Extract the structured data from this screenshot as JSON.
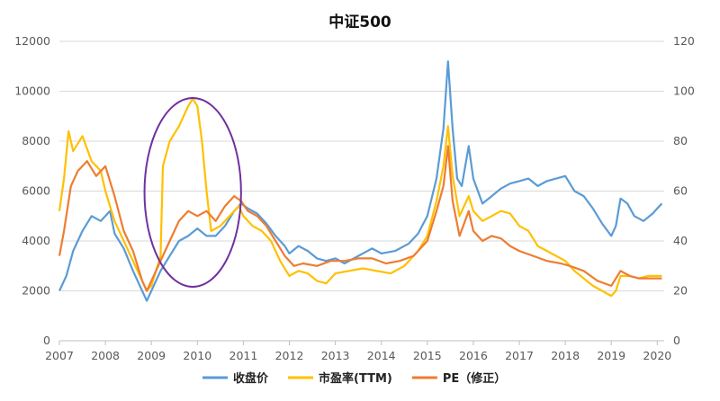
{
  "chart_data": {
    "type": "line",
    "title": "中证500",
    "x_ticks": [
      "2007",
      "2008",
      "2009",
      "2010",
      "2011",
      "2012",
      "2013",
      "2014",
      "2015",
      "2016",
      "2017",
      "2018",
      "2019",
      "2020"
    ],
    "y_left": {
      "min": 0,
      "max": 12000,
      "ticks": [
        0,
        2000,
        4000,
        6000,
        8000,
        10000,
        12000
      ]
    },
    "y_right": {
      "min": 0,
      "max": 120,
      "ticks": [
        0,
        20,
        40,
        60,
        80,
        100,
        120
      ]
    },
    "grid": true,
    "legend_position": "bottom",
    "series": [
      {
        "name": "收盘价",
        "axis": "left",
        "color": "#5b9bd5",
        "points": [
          [
            2007.0,
            2000
          ],
          [
            2007.15,
            2600
          ],
          [
            2007.3,
            3600
          ],
          [
            2007.5,
            4400
          ],
          [
            2007.7,
            5000
          ],
          [
            2007.9,
            4800
          ],
          [
            2008.0,
            5000
          ],
          [
            2008.1,
            5200
          ],
          [
            2008.2,
            4300
          ],
          [
            2008.4,
            3700
          ],
          [
            2008.6,
            2800
          ],
          [
            2008.8,
            2000
          ],
          [
            2008.9,
            1600
          ],
          [
            2009.0,
            2000
          ],
          [
            2009.2,
            2800
          ],
          [
            2009.4,
            3400
          ],
          [
            2009.6,
            4000
          ],
          [
            2009.8,
            4200
          ],
          [
            2010.0,
            4500
          ],
          [
            2010.2,
            4200
          ],
          [
            2010.4,
            4200
          ],
          [
            2010.6,
            4600
          ],
          [
            2010.8,
            5200
          ],
          [
            2010.95,
            5500
          ],
          [
            2011.1,
            5300
          ],
          [
            2011.3,
            5100
          ],
          [
            2011.5,
            4700
          ],
          [
            2011.7,
            4200
          ],
          [
            2011.9,
            3800
          ],
          [
            2012.0,
            3500
          ],
          [
            2012.2,
            3800
          ],
          [
            2012.4,
            3600
          ],
          [
            2012.6,
            3300
          ],
          [
            2012.8,
            3200
          ],
          [
            2013.0,
            3300
          ],
          [
            2013.2,
            3100
          ],
          [
            2013.5,
            3400
          ],
          [
            2013.8,
            3700
          ],
          [
            2014.0,
            3500
          ],
          [
            2014.3,
            3600
          ],
          [
            2014.6,
            3900
          ],
          [
            2014.8,
            4300
          ],
          [
            2015.0,
            5000
          ],
          [
            2015.2,
            6500
          ],
          [
            2015.35,
            8500
          ],
          [
            2015.45,
            11200
          ],
          [
            2015.55,
            8500
          ],
          [
            2015.65,
            6500
          ],
          [
            2015.75,
            6200
          ],
          [
            2015.9,
            7800
          ],
          [
            2016.0,
            6500
          ],
          [
            2016.2,
            5500
          ],
          [
            2016.4,
            5800
          ],
          [
            2016.6,
            6100
          ],
          [
            2016.8,
            6300
          ],
          [
            2017.0,
            6400
          ],
          [
            2017.2,
            6500
          ],
          [
            2017.4,
            6200
          ],
          [
            2017.6,
            6400
          ],
          [
            2017.8,
            6500
          ],
          [
            2018.0,
            6600
          ],
          [
            2018.2,
            6000
          ],
          [
            2018.4,
            5800
          ],
          [
            2018.6,
            5300
          ],
          [
            2018.8,
            4700
          ],
          [
            2019.0,
            4200
          ],
          [
            2019.1,
            4600
          ],
          [
            2019.2,
            5700
          ],
          [
            2019.35,
            5500
          ],
          [
            2019.5,
            5000
          ],
          [
            2019.7,
            4800
          ],
          [
            2019.9,
            5100
          ],
          [
            2020.0,
            5300
          ],
          [
            2020.1,
            5500
          ]
        ]
      },
      {
        "name": "市盈率(TTM)",
        "axis": "right",
        "color": "#ffc000",
        "points": [
          [
            2007.0,
            52
          ],
          [
            2007.1,
            65
          ],
          [
            2007.2,
            84
          ],
          [
            2007.3,
            76
          ],
          [
            2007.5,
            82
          ],
          [
            2007.7,
            72
          ],
          [
            2007.9,
            68
          ],
          [
            2008.0,
            60
          ],
          [
            2008.2,
            48
          ],
          [
            2008.4,
            40
          ],
          [
            2008.6,
            32
          ],
          [
            2008.8,
            24
          ],
          [
            2008.9,
            20
          ],
          [
            2009.0,
            22
          ],
          [
            2009.1,
            28
          ],
          [
            2009.2,
            34
          ],
          [
            2009.25,
            70
          ],
          [
            2009.4,
            80
          ],
          [
            2009.6,
            86
          ],
          [
            2009.8,
            94
          ],
          [
            2009.9,
            97
          ],
          [
            2010.0,
            94
          ],
          [
            2010.1,
            80
          ],
          [
            2010.2,
            60
          ],
          [
            2010.3,
            44
          ],
          [
            2010.5,
            46
          ],
          [
            2010.7,
            50
          ],
          [
            2010.9,
            54
          ],
          [
            2011.0,
            50
          ],
          [
            2011.2,
            46
          ],
          [
            2011.4,
            44
          ],
          [
            2011.6,
            40
          ],
          [
            2011.8,
            32
          ],
          [
            2012.0,
            26
          ],
          [
            2012.2,
            28
          ],
          [
            2012.4,
            27
          ],
          [
            2012.6,
            24
          ],
          [
            2012.8,
            23
          ],
          [
            2013.0,
            27
          ],
          [
            2013.3,
            28
          ],
          [
            2013.6,
            29
          ],
          [
            2013.9,
            28
          ],
          [
            2014.2,
            27
          ],
          [
            2014.5,
            30
          ],
          [
            2014.8,
            36
          ],
          [
            2015.0,
            42
          ],
          [
            2015.2,
            56
          ],
          [
            2015.35,
            70
          ],
          [
            2015.45,
            86
          ],
          [
            2015.55,
            66
          ],
          [
            2015.7,
            50
          ],
          [
            2015.9,
            58
          ],
          [
            2016.0,
            52
          ],
          [
            2016.2,
            48
          ],
          [
            2016.4,
            50
          ],
          [
            2016.6,
            52
          ],
          [
            2016.8,
            51
          ],
          [
            2017.0,
            46
          ],
          [
            2017.2,
            44
          ],
          [
            2017.4,
            38
          ],
          [
            2017.6,
            36
          ],
          [
            2017.8,
            34
          ],
          [
            2018.0,
            32
          ],
          [
            2018.2,
            28
          ],
          [
            2018.4,
            25
          ],
          [
            2018.6,
            22
          ],
          [
            2018.8,
            20
          ],
          [
            2019.0,
            18
          ],
          [
            2019.1,
            20
          ],
          [
            2019.2,
            26
          ],
          [
            2019.4,
            26
          ],
          [
            2019.6,
            25
          ],
          [
            2019.8,
            26
          ],
          [
            2020.0,
            26
          ],
          [
            2020.1,
            26
          ]
        ]
      },
      {
        "name": "PE（修正）",
        "axis": "right",
        "color": "#ed7d31",
        "points": [
          [
            2007.0,
            34
          ],
          [
            2007.1,
            44
          ],
          [
            2007.25,
            62
          ],
          [
            2007.4,
            68
          ],
          [
            2007.6,
            72
          ],
          [
            2007.8,
            66
          ],
          [
            2008.0,
            70
          ],
          [
            2008.2,
            58
          ],
          [
            2008.4,
            44
          ],
          [
            2008.6,
            36
          ],
          [
            2008.8,
            24
          ],
          [
            2008.9,
            20
          ],
          [
            2009.0,
            24
          ],
          [
            2009.2,
            32
          ],
          [
            2009.4,
            40
          ],
          [
            2009.6,
            48
          ],
          [
            2009.8,
            52
          ],
          [
            2010.0,
            50
          ],
          [
            2010.2,
            52
          ],
          [
            2010.4,
            48
          ],
          [
            2010.6,
            54
          ],
          [
            2010.8,
            58
          ],
          [
            2010.95,
            56
          ],
          [
            2011.1,
            52
          ],
          [
            2011.3,
            50
          ],
          [
            2011.5,
            46
          ],
          [
            2011.7,
            40
          ],
          [
            2011.9,
            34
          ],
          [
            2012.1,
            30
          ],
          [
            2012.3,
            31
          ],
          [
            2012.6,
            30
          ],
          [
            2012.9,
            32
          ],
          [
            2013.2,
            32
          ],
          [
            2013.5,
            33
          ],
          [
            2013.8,
            33
          ],
          [
            2014.1,
            31
          ],
          [
            2014.4,
            32
          ],
          [
            2014.7,
            34
          ],
          [
            2015.0,
            40
          ],
          [
            2015.2,
            52
          ],
          [
            2015.35,
            62
          ],
          [
            2015.45,
            78
          ],
          [
            2015.55,
            56
          ],
          [
            2015.7,
            42
          ],
          [
            2015.9,
            52
          ],
          [
            2016.0,
            44
          ],
          [
            2016.2,
            40
          ],
          [
            2016.4,
            42
          ],
          [
            2016.6,
            41
          ],
          [
            2016.8,
            38
          ],
          [
            2017.0,
            36
          ],
          [
            2017.3,
            34
          ],
          [
            2017.6,
            32
          ],
          [
            2017.9,
            31
          ],
          [
            2018.1,
            30
          ],
          [
            2018.4,
            28
          ],
          [
            2018.7,
            24
          ],
          [
            2019.0,
            22
          ],
          [
            2019.2,
            28
          ],
          [
            2019.4,
            26
          ],
          [
            2019.6,
            25
          ],
          [
            2019.9,
            25
          ],
          [
            2020.1,
            25
          ]
        ]
      }
    ],
    "annotation": {
      "shape": "ellipse",
      "color": "#7030a0",
      "x_range": [
        2008.85,
        2010.95
      ]
    }
  }
}
